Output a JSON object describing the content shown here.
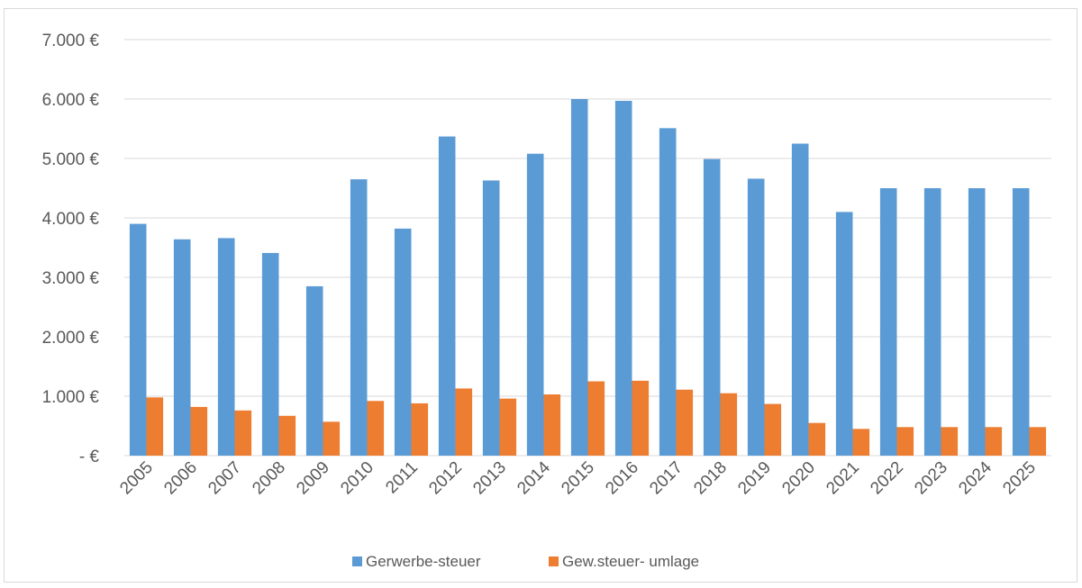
{
  "chart_data": {
    "type": "bar",
    "categories": [
      "2005",
      "2006",
      "2007",
      "2008",
      "2009",
      "2010",
      "2011",
      "2012",
      "2013",
      "2014",
      "2015",
      "2016",
      "2017",
      "2018",
      "2019",
      "2020",
      "2021",
      "2022",
      "2023",
      "2024",
      "2025"
    ],
    "series": [
      {
        "name": "Gerwerbe-steuer",
        "color": "#5b9bd5",
        "values": [
          3900,
          3640,
          3660,
          3410,
          2850,
          4650,
          3820,
          5370,
          4630,
          5080,
          6000,
          5970,
          5510,
          4990,
          4660,
          5250,
          4100,
          4500,
          4500,
          4500,
          4500
        ]
      },
      {
        "name": "Gew.steuer- umlage",
        "color": "#ed7d31",
        "values": [
          980,
          820,
          760,
          670,
          570,
          920,
          880,
          1130,
          960,
          1030,
          1250,
          1260,
          1110,
          1050,
          870,
          550,
          450,
          480,
          480,
          480,
          480
        ]
      }
    ],
    "ylim": [
      0,
      7000
    ],
    "yticks": [
      {
        "value": 0,
        "label": "-   €"
      },
      {
        "value": 1000,
        "label": "1.000 €"
      },
      {
        "value": 2000,
        "label": "2.000 €"
      },
      {
        "value": 3000,
        "label": "3.000 €"
      },
      {
        "value": 4000,
        "label": "4.000 €"
      },
      {
        "value": 5000,
        "label": "5.000 €"
      },
      {
        "value": 6000,
        "label": "6.000 €"
      },
      {
        "value": 7000,
        "label": "7.000 €"
      }
    ],
    "grid": true,
    "legend_position": "bottom",
    "title": "",
    "xlabel": "",
    "ylabel": ""
  }
}
